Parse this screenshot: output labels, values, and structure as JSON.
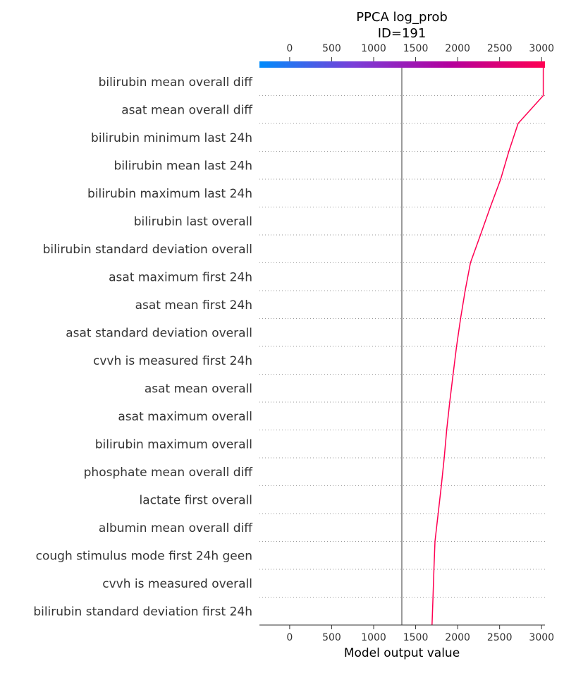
{
  "chart_data": {
    "type": "line",
    "plot_kind": "shap-decision-plot",
    "title": "PPCA log_prob",
    "subtitle": "ID=191",
    "xlabel": "Model output value",
    "ylabel": "",
    "xlim": [
      -360,
      3040
    ],
    "xticks": [
      0,
      500,
      1000,
      1500,
      2000,
      2500,
      3000
    ],
    "tick_labels": [
      "0",
      "500",
      "1000",
      "1500",
      "2000",
      "2500",
      "3000"
    ],
    "base_value": 1335,
    "features": [
      "bilirubin  mean  overall  diff",
      "asat  mean  overall  diff",
      "bilirubin  minimum  last 24h",
      "bilirubin  mean  last 24h",
      "bilirubin  maximum  last 24h",
      "bilirubin  last  overall",
      "bilirubin  standard deviation  overall",
      "asat  maximum  first 24h",
      "asat  mean  first 24h",
      "asat  standard deviation  overall",
      "cvvh  is measured  first 24h",
      "asat  mean  overall",
      "asat  maximum  overall",
      "bilirubin  maximum  overall",
      "phosphate  mean  overall  diff",
      "lactate  first  overall",
      "albumin  mean  overall  diff",
      "cough stimulus  mode  first 24h  geen",
      "cvvh  is measured  overall",
      "bilirubin  standard deviation  first 24h"
    ],
    "path_values": [
      1695,
      1707,
      1718,
      1730,
      1768,
      1806,
      1840,
      1870,
      1906,
      1946,
      1987,
      2035,
      2090,
      2153,
      2272,
      2389,
      2513,
      2610,
      2720,
      3020
    ],
    "grid": true,
    "colorbar": {
      "colors": [
        "#008bfb",
        "#7a3ed8",
        "#b2009e",
        "#ff0052"
      ]
    },
    "line_color": "#ff0052",
    "base_line_color": "#999999"
  }
}
